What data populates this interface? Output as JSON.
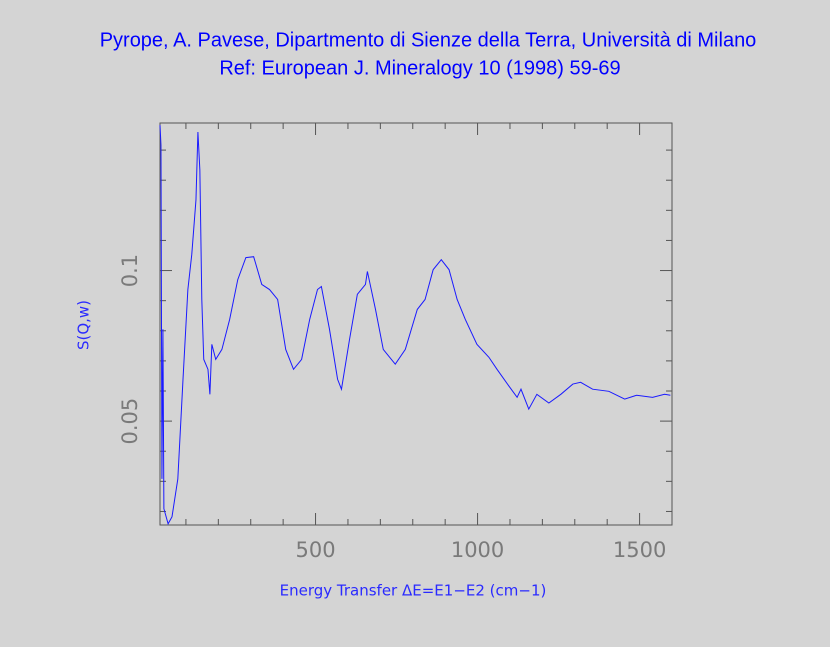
{
  "chart_data": {
    "type": "line",
    "title": "Pyrope, A. Pavese, Dipartmento di Sienze della Terra, Università di Milano",
    "subtitle": "Ref: European J. Mineralogy 10 (1998) 59-69",
    "x_label": "Energy Transfer ΔE=E1−E2 (cm−1)",
    "y_label": "S(Q,w)",
    "xlim": [
      20,
      1600
    ],
    "ylim": [
      0.0155,
      0.149
    ],
    "xticks": [
      500,
      1000,
      1500
    ],
    "yticks": [
      0.05,
      0.1
    ],
    "xminorticks": [
      100,
      200,
      300,
      400,
      600,
      700,
      800,
      900,
      1100,
      1200,
      1300,
      1400
    ],
    "yminorticks": [
      0.02,
      0.03,
      0.04,
      0.06,
      0.07,
      0.08,
      0.09,
      0.11,
      0.12,
      0.13,
      0.14
    ],
    "grid": false,
    "series": [
      {
        "color": "#1a1aff",
        "x": [
          20,
          23,
          26,
          29,
          32,
          45,
          57,
          75,
          91,
          106,
          118,
          131,
          137,
          143,
          149,
          155,
          168,
          174,
          180,
          192,
          211,
          235,
          260,
          285,
          309,
          334,
          358,
          383,
          408,
          432,
          457,
          482,
          506,
          518,
          543,
          568,
          580,
          605,
          629,
          654,
          660,
          685,
          709,
          746,
          777,
          814,
          838,
          863,
          888,
          912,
          937,
          962,
          998,
          1035,
          1060,
          1097,
          1122,
          1134,
          1158,
          1183,
          1220,
          1257,
          1294,
          1318,
          1355,
          1405,
          1454,
          1491,
          1540,
          1577,
          1595
        ],
        "values": [
          0.1483,
          0.1417,
          0.0308,
          0.0805,
          0.0209,
          0.0159,
          0.0182,
          0.0308,
          0.0639,
          0.0937,
          0.1053,
          0.1235,
          0.146,
          0.1334,
          0.0904,
          0.0705,
          0.0672,
          0.0589,
          0.0755,
          0.0705,
          0.0738,
          0.0838,
          0.097,
          0.1043,
          0.1046,
          0.0954,
          0.0937,
          0.0904,
          0.0738,
          0.0672,
          0.0705,
          0.0838,
          0.0937,
          0.0947,
          0.0805,
          0.0639,
          0.0606,
          0.0772,
          0.0921,
          0.0954,
          0.0997,
          0.0871,
          0.0738,
          0.0689,
          0.0738,
          0.0871,
          0.0904,
          0.1003,
          0.1036,
          0.1003,
          0.0904,
          0.0838,
          0.0755,
          0.0712,
          0.0672,
          0.0616,
          0.0579,
          0.0606,
          0.054,
          0.0589,
          0.056,
          0.0589,
          0.0623,
          0.0629,
          0.0606,
          0.0599,
          0.0573,
          0.0586,
          0.0579,
          0.0589,
          0.0586
        ]
      }
    ]
  }
}
